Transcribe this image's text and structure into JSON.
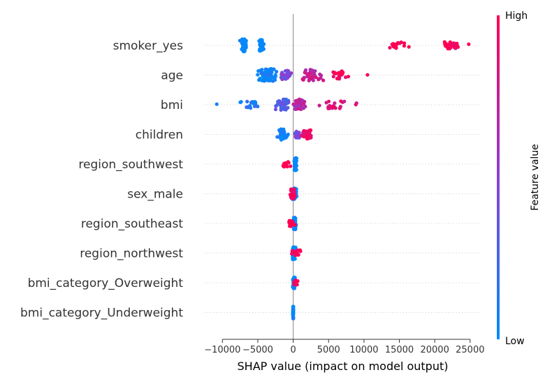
{
  "chart_data": {
    "type": "scatter",
    "subtype": "shap-beeswarm",
    "xlabel": "SHAP value (impact on model output)",
    "xlim": [
      -12500,
      26500
    ],
    "xticks": [
      -10000,
      -5000,
      0,
      5000,
      10000,
      15000,
      20000,
      25000
    ],
    "xtick_labels": [
      "−10000",
      "−5000",
      "0",
      "5000",
      "10000",
      "15000",
      "20000",
      "25000"
    ],
    "grid": "dotted-horizontal",
    "colorbar": {
      "label": "Feature value",
      "high_label": "High",
      "low_label": "Low",
      "low_color": "#008bfb",
      "high_color": "#ff0052"
    },
    "features": [
      {
        "name": "smoker_yes",
        "points": [
          {
            "x": -7000,
            "v": 0.0,
            "n": 60,
            "spread": 700
          },
          {
            "x": -4500,
            "v": 0.0,
            "n": 40,
            "spread": 500
          },
          {
            "x": 14500,
            "v": 1.0,
            "n": 18,
            "spread": 1500
          },
          {
            "x": 16000,
            "v": 1.0,
            "n": 2,
            "spread": 1200
          },
          {
            "x": 22000,
            "v": 1.0,
            "n": 22,
            "spread": 1700
          },
          {
            "x": 24800,
            "v": 1.0,
            "n": 1,
            "spread": 0
          }
        ]
      },
      {
        "name": "age",
        "points": [
          {
            "x": -3500,
            "v": 0.05,
            "n": 70,
            "spread": 1800
          },
          {
            "x": -1000,
            "v": 0.45,
            "n": 30,
            "spread": 1200
          },
          {
            "x": 2500,
            "v": 0.75,
            "n": 40,
            "spread": 2200
          },
          {
            "x": 6500,
            "v": 0.95,
            "n": 24,
            "spread": 1600
          },
          {
            "x": 10500,
            "v": 1.0,
            "n": 1,
            "spread": 0
          }
        ]
      },
      {
        "name": "bmi",
        "points": [
          {
            "x": -10800,
            "v": 0.0,
            "n": 1,
            "spread": 0
          },
          {
            "x": -6000,
            "v": 0.1,
            "n": 18,
            "spread": 2000
          },
          {
            "x": -1500,
            "v": 0.3,
            "n": 40,
            "spread": 1400
          },
          {
            "x": 1000,
            "v": 0.7,
            "n": 40,
            "spread": 1200
          },
          {
            "x": 5500,
            "v": 0.85,
            "n": 22,
            "spread": 2500
          },
          {
            "x": 8800,
            "v": 0.9,
            "n": 2,
            "spread": 300
          }
        ]
      },
      {
        "name": "children",
        "points": [
          {
            "x": -1500,
            "v": 0.0,
            "n": 40,
            "spread": 900
          },
          {
            "x": 500,
            "v": 0.4,
            "n": 20,
            "spread": 700
          },
          {
            "x": 1800,
            "v": 0.9,
            "n": 30,
            "spread": 1000
          }
        ]
      },
      {
        "name": "region_southwest",
        "points": [
          {
            "x": 300,
            "v": 0.0,
            "n": 55,
            "spread": 250
          },
          {
            "x": -1000,
            "v": 1.0,
            "n": 12,
            "spread": 900
          }
        ]
      },
      {
        "name": "sex_male",
        "points": [
          {
            "x": 200,
            "v": 0.0,
            "n": 40,
            "spread": 500
          },
          {
            "x": -100,
            "v": 1.0,
            "n": 35,
            "spread": 500
          }
        ]
      },
      {
        "name": "region_southeast",
        "points": [
          {
            "x": 200,
            "v": 0.0,
            "n": 50,
            "spread": 250
          },
          {
            "x": -300,
            "v": 1.0,
            "n": 18,
            "spread": 700
          }
        ]
      },
      {
        "name": "region_northwest",
        "points": [
          {
            "x": 100,
            "v": 0.0,
            "n": 50,
            "spread": 300
          },
          {
            "x": 300,
            "v": 1.0,
            "n": 16,
            "spread": 900
          }
        ]
      },
      {
        "name": "bmi_category_Overweight",
        "points": [
          {
            "x": 100,
            "v": 0.0,
            "n": 40,
            "spread": 200
          },
          {
            "x": 300,
            "v": 1.0,
            "n": 10,
            "spread": 400
          }
        ]
      },
      {
        "name": "bmi_category_Underweight",
        "points": [
          {
            "x": 0,
            "v": 0.0,
            "n": 50,
            "spread": 60
          }
        ]
      }
    ]
  }
}
